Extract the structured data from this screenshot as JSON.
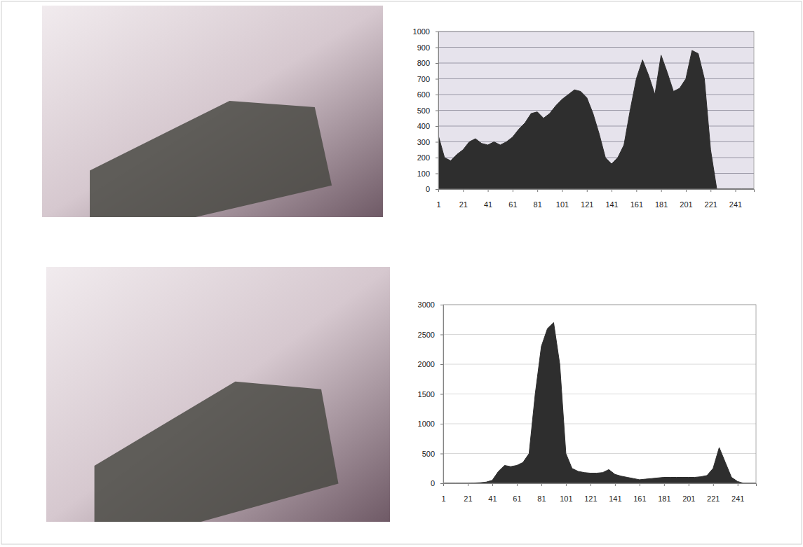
{
  "chart_data": [
    {
      "type": "area",
      "color": "#2e2e2e",
      "grid": true,
      "x": [
        1,
        6,
        11,
        16,
        21,
        26,
        31,
        36,
        41,
        46,
        51,
        56,
        61,
        66,
        71,
        76,
        81,
        86,
        91,
        96,
        101,
        106,
        111,
        116,
        121,
        126,
        131,
        136,
        141,
        146,
        151,
        156,
        161,
        166,
        171,
        176,
        181,
        186,
        191,
        196,
        201,
        206,
        211,
        216,
        221,
        226,
        231,
        236,
        241,
        246,
        251,
        256
      ],
      "values": [
        340,
        200,
        180,
        220,
        250,
        300,
        320,
        290,
        280,
        300,
        280,
        300,
        330,
        380,
        420,
        480,
        490,
        450,
        480,
        530,
        570,
        600,
        630,
        620,
        580,
        480,
        350,
        200,
        160,
        200,
        280,
        500,
        700,
        820,
        720,
        600,
        850,
        740,
        620,
        640,
        700,
        880,
        860,
        700,
        250,
        0,
        0,
        0,
        0,
        0,
        0,
        0
      ],
      "xlim": [
        1,
        256
      ],
      "xticks": [
        1,
        21,
        41,
        61,
        81,
        101,
        121,
        141,
        161,
        181,
        201,
        221,
        241
      ],
      "ylim": [
        0,
        1000
      ],
      "yticks": [
        0,
        100,
        200,
        300,
        400,
        500,
        600,
        700,
        800,
        900,
        1000
      ]
    },
    {
      "type": "area",
      "color": "#2e2e2e",
      "grid": true,
      "x": [
        1,
        6,
        11,
        16,
        21,
        26,
        31,
        36,
        41,
        46,
        51,
        56,
        61,
        66,
        71,
        76,
        81,
        86,
        91,
        96,
        101,
        106,
        111,
        116,
        121,
        126,
        131,
        136,
        141,
        146,
        151,
        156,
        161,
        166,
        171,
        176,
        181,
        186,
        191,
        196,
        201,
        206,
        211,
        216,
        221,
        226,
        231,
        236,
        241,
        246,
        251,
        256
      ],
      "values": [
        0,
        0,
        0,
        0,
        0,
        5,
        10,
        20,
        50,
        200,
        300,
        280,
        300,
        350,
        500,
        1500,
        2300,
        2600,
        2700,
        2000,
        500,
        250,
        200,
        180,
        170,
        170,
        180,
        230,
        150,
        120,
        100,
        80,
        60,
        70,
        80,
        90,
        100,
        100,
        100,
        100,
        100,
        100,
        110,
        130,
        250,
        600,
        350,
        100,
        30,
        0,
        0,
        0
      ],
      "xlim": [
        1,
        256
      ],
      "xticks": [
        1,
        21,
        41,
        61,
        81,
        101,
        121,
        141,
        161,
        181,
        201,
        221,
        241
      ],
      "ylim": [
        0,
        3000
      ],
      "yticks": [
        0,
        500,
        1000,
        1500,
        2000,
        2500,
        3000
      ]
    }
  ]
}
